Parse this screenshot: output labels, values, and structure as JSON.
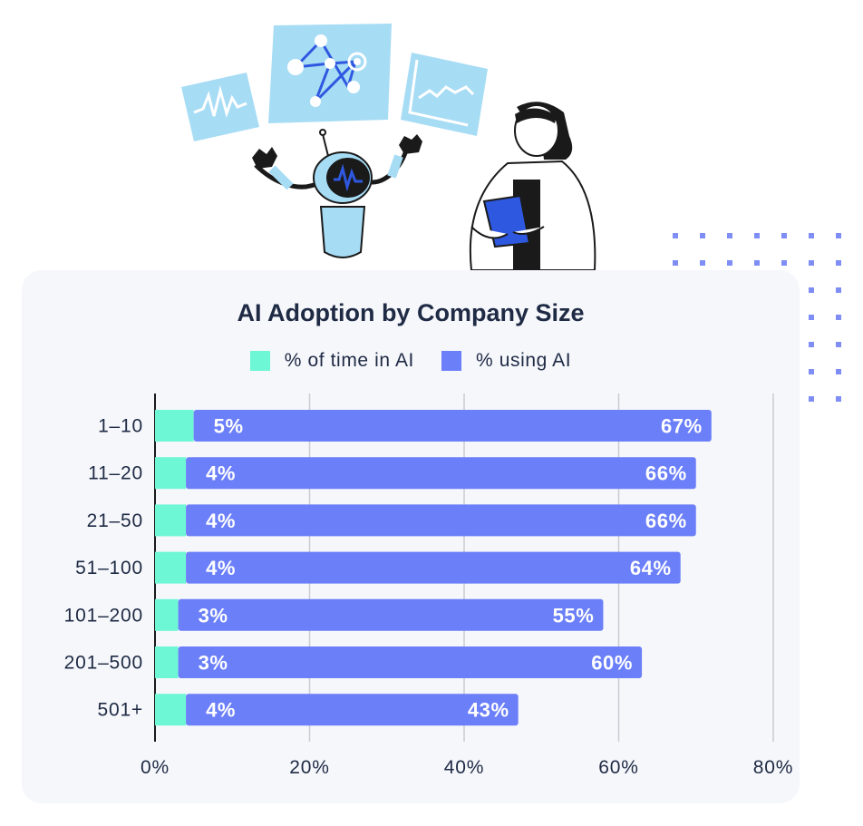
{
  "chart_data": {
    "type": "bar",
    "orientation": "horizontal",
    "stacked": true,
    "title": "AI Adoption by Company Size",
    "categories": [
      "1–10",
      "11–20",
      "21–50",
      "51–100",
      "101–200",
      "201–500",
      "501+"
    ],
    "series": [
      {
        "name": "% of time in AI",
        "color": "#6ef7d4",
        "values": [
          5,
          4,
          4,
          4,
          3,
          3,
          4
        ]
      },
      {
        "name": "% using AI",
        "color": "#6b7ff9",
        "values": [
          67,
          66,
          66,
          64,
          55,
          60,
          43
        ]
      }
    ],
    "data_labels": {
      "% of time in AI": [
        "5%",
        "4%",
        "4%",
        "4%",
        "3%",
        "3%",
        "4%"
      ],
      "% using AI": [
        "67%",
        "66%",
        "66%",
        "64%",
        "55%",
        "60%",
        "43%"
      ]
    },
    "xlim": [
      0,
      80
    ],
    "xticks": [
      0,
      20,
      40,
      60,
      80
    ],
    "xtick_labels": [
      "0%",
      "20%",
      "40%",
      "60%",
      "80%"
    ],
    "grid": "vertical",
    "legend_position": "top-center"
  },
  "colors": {
    "background_card": "#f5f7fb",
    "title_text": "#1f2a44",
    "grid": "#c9ccd3",
    "illustration_panel": "#a7dcf5",
    "illustration_accent": "#2f58e0",
    "dot_pattern": "#7f8ef5"
  },
  "illustration": {
    "icons": [
      "waveform-card-icon",
      "network-graph-card-icon",
      "line-chart-card-icon",
      "robot-icon",
      "woman-with-clipboard-icon",
      "dot-grid-icon"
    ]
  }
}
